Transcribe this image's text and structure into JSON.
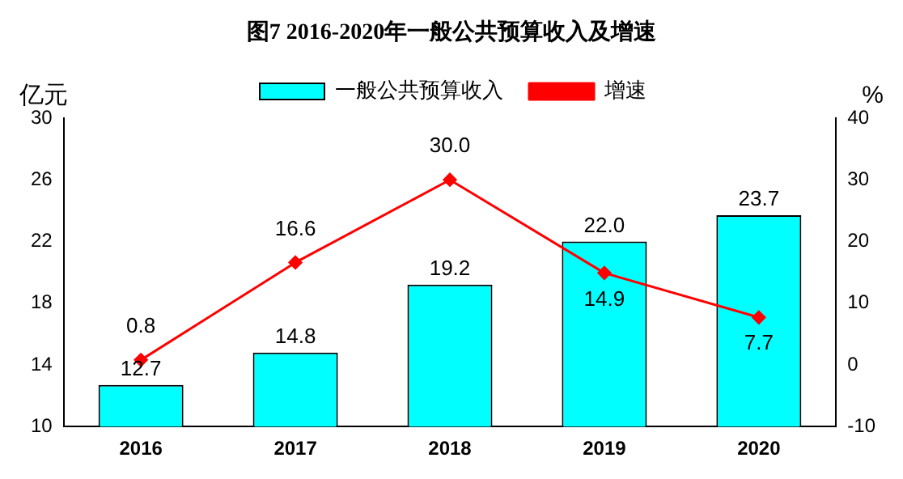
{
  "chart_data": {
    "type": "bar",
    "title": "图7 2016-2020年一般公共预算收入及增速",
    "ylabel": "亿元",
    "y2label": "%",
    "categories": [
      "2016",
      "2017",
      "2018",
      "2019",
      "2020"
    ],
    "series": [
      {
        "name": "一般公共预算收入",
        "color": "#00ffff",
        "values": [
          12.7,
          14.8,
          19.2,
          22.0,
          23.7
        ],
        "value_labels": [
          "12.7",
          "14.8",
          "19.2",
          "22.0",
          "23.7"
        ]
      },
      {
        "name": "增速",
        "type": "line",
        "axis": "y2",
        "color": "#ff0000",
        "marker": "diamond",
        "values": [
          0.8,
          16.6,
          30.0,
          14.9,
          7.7
        ],
        "value_labels": [
          "0.8",
          "16.6",
          "30.0",
          "14.9",
          "7.7"
        ]
      }
    ],
    "ylim": [
      10,
      30
    ],
    "yticks": [
      10,
      14,
      18,
      22,
      26,
      30
    ],
    "y2lim": [
      -10,
      40
    ],
    "y2ticks": [
      -10,
      0,
      10,
      20,
      30,
      40
    ],
    "legend": "top",
    "grid": false
  }
}
